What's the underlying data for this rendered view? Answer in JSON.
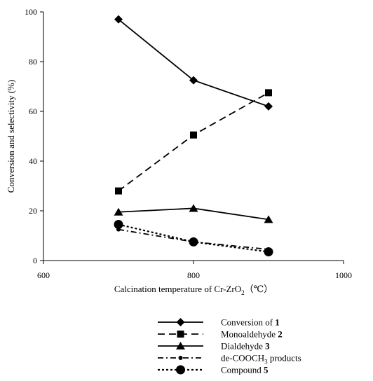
{
  "chart_data": {
    "type": "line",
    "xlabel_prefix": "Calcination temperature of Cr-ZrO",
    "xlabel_sub": "2",
    "xlabel_suffix": "（℃）",
    "ylabel": "Conversion and selectivity (%)",
    "xlim": [
      600,
      1000
    ],
    "ylim": [
      0,
      100
    ],
    "x_ticks": [
      "600",
      "800",
      "1000"
    ],
    "y_ticks": [
      "0",
      "20",
      "40",
      "60",
      "80",
      "100"
    ],
    "grid": false,
    "legend_position": "bottom",
    "x": [
      700,
      800,
      900
    ],
    "series": [
      {
        "name_prefix": "Conversion of ",
        "name_bold": "1",
        "name_sub": "",
        "name_suffix": "",
        "values": [
          97,
          72.5,
          62
        ],
        "marker": "diamond",
        "line": "solid"
      },
      {
        "name_prefix": "Monoaldehyde ",
        "name_bold": "2",
        "name_sub": "",
        "name_suffix": "",
        "values": [
          28,
          50.5,
          67.5
        ],
        "marker": "square",
        "line": "dashed"
      },
      {
        "name_prefix": "Dialdehyde ",
        "name_bold": "3",
        "name_sub": "",
        "name_suffix": "",
        "values": [
          19.5,
          21,
          16.5
        ],
        "marker": "triangle",
        "line": "solid"
      },
      {
        "name_prefix": "de-COOCH",
        "name_bold": "",
        "name_sub": "3",
        "name_suffix": " products",
        "values": [
          12.5,
          7.5,
          4.5
        ],
        "marker": "small-circle",
        "line": "dash-dot"
      },
      {
        "name_prefix": "Compound ",
        "name_bold": "5",
        "name_sub": "",
        "name_suffix": "",
        "values": [
          14.5,
          7.5,
          3.5
        ],
        "marker": "circle",
        "line": "dotted"
      }
    ]
  }
}
